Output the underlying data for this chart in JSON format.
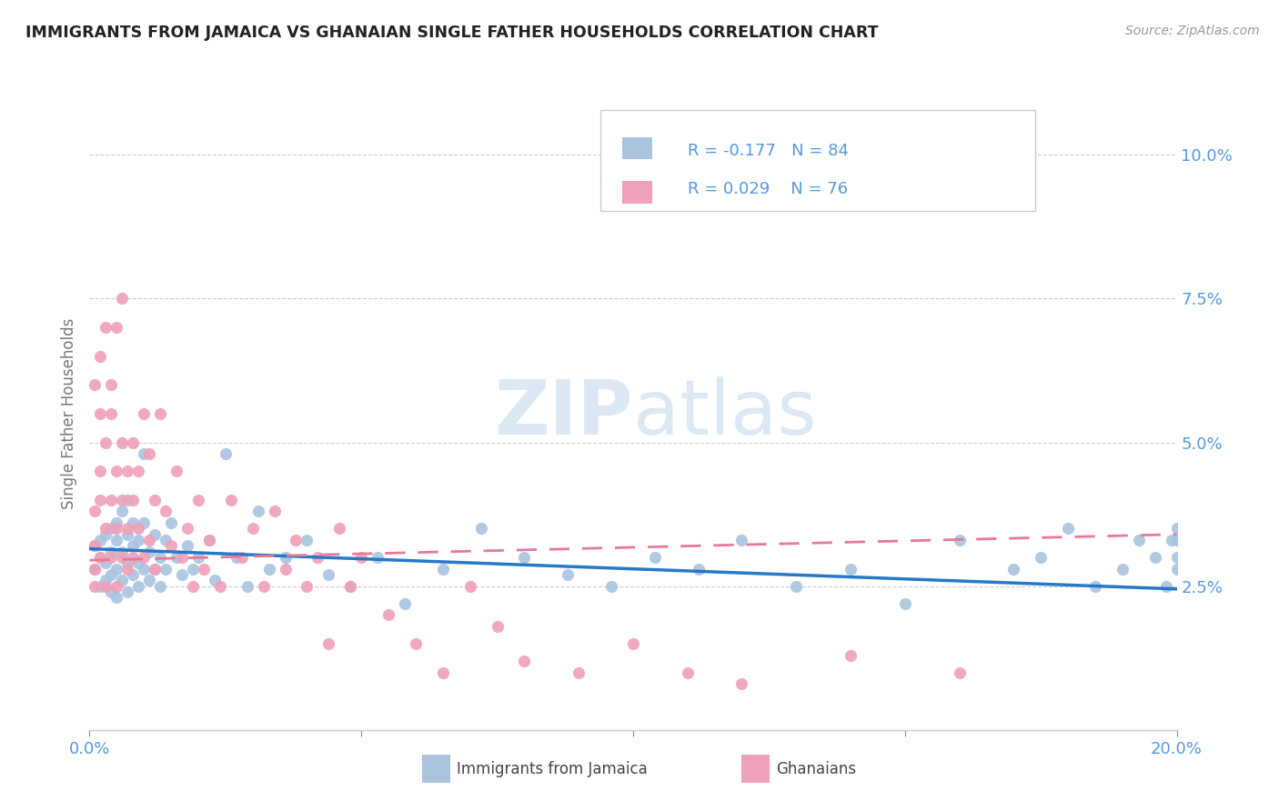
{
  "title": "IMMIGRANTS FROM JAMAICA VS GHANAIAN SINGLE FATHER HOUSEHOLDS CORRELATION CHART",
  "source": "Source: ZipAtlas.com",
  "ylabel": "Single Father Households",
  "legend_label1": "Immigrants from Jamaica",
  "legend_label2": "Ghanaians",
  "R1": -0.177,
  "N1": 84,
  "R2": 0.029,
  "N2": 76,
  "color1": "#aac4e0",
  "color2": "#f0a0b8",
  "line_color1": "#2878c8",
  "line_color2": "#e87898",
  "watermark_zip": "ZIP",
  "watermark_atlas": "atlas",
  "xmin": 0.0,
  "xmax": 0.2,
  "ymin": 0.0,
  "ymax": 0.11,
  "yticks": [
    0.025,
    0.05,
    0.075,
    0.1
  ],
  "xticks": [
    0.0,
    0.05,
    0.1,
    0.15,
    0.2
  ],
  "scatter1_x": [
    0.001,
    0.001,
    0.002,
    0.002,
    0.002,
    0.003,
    0.003,
    0.003,
    0.004,
    0.004,
    0.004,
    0.004,
    0.005,
    0.005,
    0.005,
    0.005,
    0.006,
    0.006,
    0.006,
    0.007,
    0.007,
    0.007,
    0.007,
    0.008,
    0.008,
    0.008,
    0.009,
    0.009,
    0.009,
    0.01,
    0.01,
    0.01,
    0.011,
    0.011,
    0.012,
    0.012,
    0.013,
    0.013,
    0.014,
    0.014,
    0.015,
    0.016,
    0.017,
    0.018,
    0.019,
    0.02,
    0.022,
    0.023,
    0.025,
    0.027,
    0.029,
    0.031,
    0.033,
    0.036,
    0.04,
    0.044,
    0.048,
    0.053,
    0.058,
    0.065,
    0.072,
    0.08,
    0.088,
    0.096,
    0.104,
    0.112,
    0.12,
    0.13,
    0.14,
    0.15,
    0.16,
    0.17,
    0.175,
    0.18,
    0.185,
    0.19,
    0.193,
    0.196,
    0.198,
    0.199,
    0.2,
    0.2,
    0.2,
    0.2
  ],
  "scatter1_y": [
    0.028,
    0.032,
    0.03,
    0.025,
    0.033,
    0.029,
    0.034,
    0.026,
    0.031,
    0.027,
    0.035,
    0.024,
    0.033,
    0.028,
    0.036,
    0.023,
    0.031,
    0.026,
    0.038,
    0.029,
    0.034,
    0.024,
    0.04,
    0.032,
    0.027,
    0.036,
    0.029,
    0.033,
    0.025,
    0.036,
    0.028,
    0.048,
    0.031,
    0.026,
    0.034,
    0.028,
    0.03,
    0.025,
    0.033,
    0.028,
    0.036,
    0.03,
    0.027,
    0.032,
    0.028,
    0.03,
    0.033,
    0.026,
    0.048,
    0.03,
    0.025,
    0.038,
    0.028,
    0.03,
    0.033,
    0.027,
    0.025,
    0.03,
    0.022,
    0.028,
    0.035,
    0.03,
    0.027,
    0.025,
    0.03,
    0.028,
    0.033,
    0.025,
    0.028,
    0.022,
    0.033,
    0.028,
    0.03,
    0.035,
    0.025,
    0.028,
    0.033,
    0.03,
    0.025,
    0.033,
    0.028,
    0.035,
    0.03,
    0.033
  ],
  "scatter2_x": [
    0.001,
    0.001,
    0.001,
    0.001,
    0.001,
    0.002,
    0.002,
    0.002,
    0.002,
    0.002,
    0.003,
    0.003,
    0.003,
    0.003,
    0.004,
    0.004,
    0.004,
    0.004,
    0.005,
    0.005,
    0.005,
    0.005,
    0.006,
    0.006,
    0.006,
    0.006,
    0.007,
    0.007,
    0.007,
    0.008,
    0.008,
    0.008,
    0.009,
    0.009,
    0.01,
    0.01,
    0.011,
    0.011,
    0.012,
    0.012,
    0.013,
    0.014,
    0.015,
    0.016,
    0.017,
    0.018,
    0.019,
    0.02,
    0.021,
    0.022,
    0.024,
    0.026,
    0.028,
    0.03,
    0.032,
    0.034,
    0.036,
    0.038,
    0.04,
    0.042,
    0.044,
    0.046,
    0.048,
    0.05,
    0.055,
    0.06,
    0.065,
    0.07,
    0.075,
    0.08,
    0.09,
    0.1,
    0.11,
    0.12,
    0.14,
    0.16
  ],
  "scatter2_y": [
    0.028,
    0.032,
    0.025,
    0.038,
    0.06,
    0.045,
    0.055,
    0.03,
    0.04,
    0.065,
    0.035,
    0.05,
    0.07,
    0.025,
    0.04,
    0.055,
    0.03,
    0.06,
    0.035,
    0.045,
    0.025,
    0.07,
    0.04,
    0.05,
    0.03,
    0.075,
    0.035,
    0.045,
    0.028,
    0.05,
    0.04,
    0.03,
    0.045,
    0.035,
    0.055,
    0.03,
    0.048,
    0.033,
    0.04,
    0.028,
    0.055,
    0.038,
    0.032,
    0.045,
    0.03,
    0.035,
    0.025,
    0.04,
    0.028,
    0.033,
    0.025,
    0.04,
    0.03,
    0.035,
    0.025,
    0.038,
    0.028,
    0.033,
    0.025,
    0.03,
    0.015,
    0.035,
    0.025,
    0.03,
    0.02,
    0.015,
    0.01,
    0.025,
    0.018,
    0.012,
    0.01,
    0.015,
    0.01,
    0.008,
    0.013,
    0.01
  ],
  "trend1_x0": 0.0,
  "trend1_x1": 0.2,
  "trend1_y0": 0.0315,
  "trend1_y1": 0.0245,
  "trend2_x0": 0.0,
  "trend2_x1": 0.2,
  "trend2_y0": 0.0295,
  "trend2_y1": 0.034,
  "bg_color": "#ffffff",
  "grid_color": "#cccccc",
  "tick_color": "#5599dd",
  "axis_color": "#cccccc",
  "title_color": "#222222",
  "source_color": "#999999",
  "ylabel_color": "#777777"
}
